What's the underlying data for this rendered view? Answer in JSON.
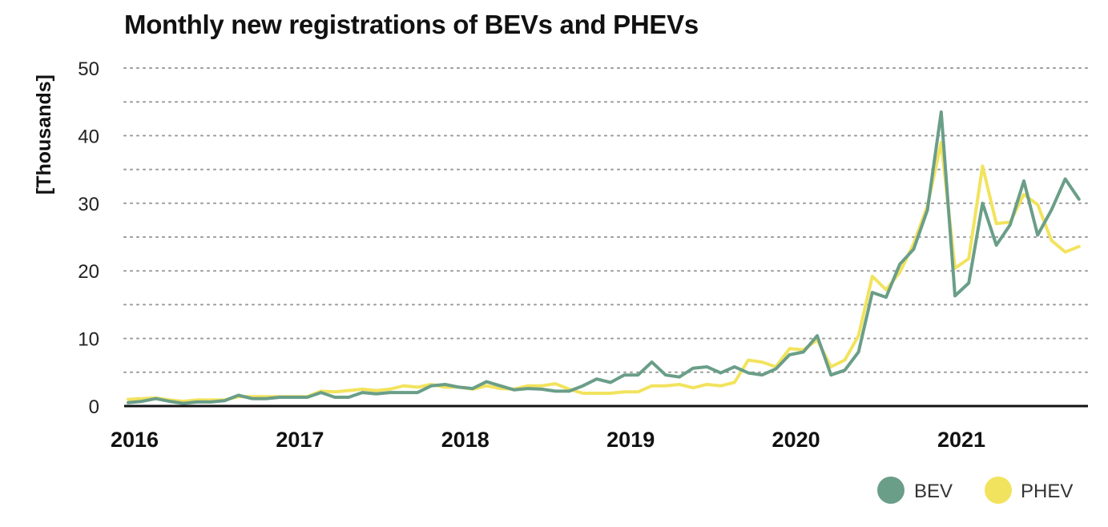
{
  "chart_data": {
    "type": "line",
    "title": "Monthly new registrations of BEVs and PHEVs",
    "xlabel": "",
    "ylabel": "[Thousands]",
    "ylim": [
      0,
      50
    ],
    "yticks": [
      0,
      10,
      20,
      30,
      40,
      50
    ],
    "xticks": [
      "2016",
      "2017",
      "2018",
      "2019",
      "2020",
      "2021"
    ],
    "x_start": "2016-01",
    "x_end": "2021-10",
    "grid": true,
    "grid_style": "dotted",
    "legend_position": "bottom-right",
    "series": [
      {
        "name": "BEV",
        "color": "#6a9e88",
        "values": [
          0.5,
          0.7,
          1.1,
          0.7,
          0.4,
          0.6,
          0.6,
          0.8,
          1.6,
          1.1,
          1.1,
          1.3,
          1.3,
          1.3,
          2.0,
          1.3,
          1.3,
          2.0,
          1.8,
          2.0,
          2.0,
          2.0,
          3.0,
          3.2,
          2.8,
          2.6,
          3.6,
          3.0,
          2.4,
          2.6,
          2.5,
          2.2,
          2.2,
          3.0,
          4.0,
          3.5,
          4.6,
          4.6,
          6.5,
          4.6,
          4.3,
          5.6,
          5.8,
          4.9,
          5.8,
          4.9,
          4.6,
          5.5,
          7.6,
          8.0,
          10.4,
          4.6,
          5.3,
          8.0,
          16.8,
          16.1,
          21.0,
          23.2,
          29.0,
          43.5,
          16.3,
          18.2,
          30.0,
          23.8,
          26.8,
          33.3,
          25.3,
          29.0,
          33.6,
          30.6
        ]
      },
      {
        "name": "PHEV",
        "color": "#f2e35e",
        "values": [
          1.0,
          1.1,
          1.2,
          0.9,
          0.7,
          0.9,
          0.9,
          0.9,
          1.4,
          1.4,
          1.4,
          1.4,
          1.4,
          1.4,
          2.2,
          2.1,
          2.3,
          2.5,
          2.3,
          2.5,
          3.0,
          2.8,
          3.2,
          2.8,
          2.8,
          2.5,
          3.0,
          2.6,
          2.5,
          3.0,
          3.0,
          3.3,
          2.5,
          1.9,
          1.9,
          1.9,
          2.1,
          2.1,
          3.0,
          3.0,
          3.2,
          2.7,
          3.2,
          3.0,
          3.5,
          6.8,
          6.5,
          5.8,
          8.5,
          8.3,
          9.8,
          5.8,
          6.8,
          10.4,
          19.2,
          17.2,
          19.8,
          24.0,
          29.6,
          39.0,
          20.4,
          21.8,
          35.5,
          27.0,
          27.2,
          31.3,
          29.8,
          24.5,
          22.8,
          23.6
        ]
      }
    ]
  },
  "legend": [
    {
      "label": "BEV",
      "color": "#6a9e88"
    },
    {
      "label": "PHEV",
      "color": "#f2e35e"
    }
  ]
}
